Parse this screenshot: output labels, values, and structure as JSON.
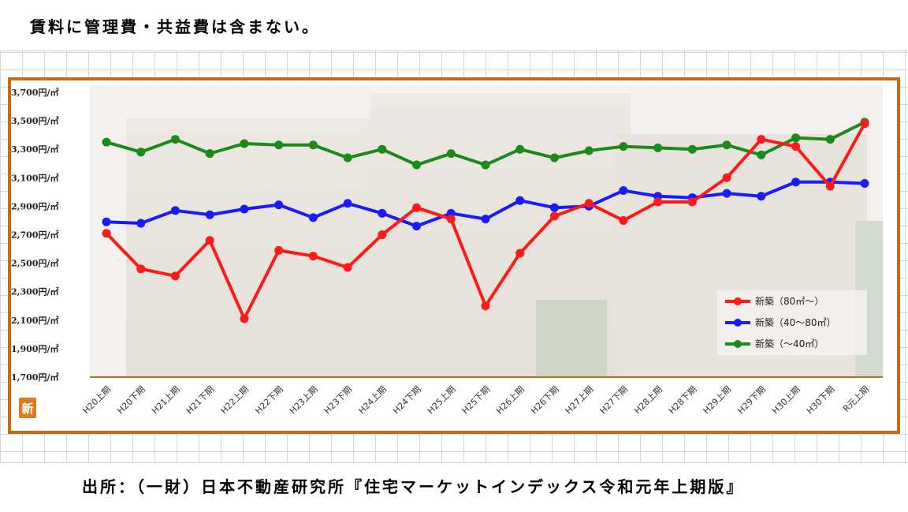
{
  "note": "賃料に管理費・共益費は含まない。",
  "source": "出所：（一財）日本不動産研究所『住宅マーケットインデックス令和元年上期版』",
  "badge": "新",
  "chart_data": {
    "type": "line",
    "title": "",
    "xlabel": "",
    "ylabel": "",
    "ylim": [
      1700,
      3700
    ],
    "yticks": [
      1700,
      1900,
      2100,
      2300,
      2500,
      2700,
      2900,
      3100,
      3300,
      3500,
      3700
    ],
    "ytick_suffix": "円/㎡",
    "categories": [
      "H20上期",
      "H20下期",
      "H21上期",
      "H21下期",
      "H22上期",
      "H22下期",
      "H23上期",
      "H23下期",
      "H24上期",
      "H24下期",
      "H25上期",
      "H25下期",
      "H26上期",
      "H26下期",
      "H27上期",
      "H27下期",
      "H28上期",
      "H28下期",
      "H29上期",
      "H29下期",
      "H30上期",
      "H30下期",
      "R元上期"
    ],
    "legend_position": "bottom-right",
    "series": [
      {
        "name": "新築（80㎡～）",
        "color": "#ff1a1a",
        "values": [
          2710,
          2460,
          2410,
          2660,
          2110,
          2590,
          2550,
          2470,
          2700,
          2890,
          2810,
          2200,
          2570,
          2830,
          2920,
          2800,
          2930,
          2930,
          3100,
          3370,
          3320,
          3040,
          3480
        ]
      },
      {
        "name": "新築（40～80㎡）",
        "color": "#1a1aff",
        "values": [
          2790,
          2780,
          2870,
          2840,
          2880,
          2910,
          2820,
          2920,
          2850,
          2760,
          2850,
          2810,
          2940,
          2890,
          2900,
          3010,
          2970,
          2960,
          2990,
          2970,
          3070,
          3070,
          3060
        ]
      },
      {
        "name": "新築（～40㎡）",
        "color": "#1a8a1a",
        "values": [
          3350,
          3280,
          3370,
          3270,
          3340,
          3330,
          3330,
          3240,
          3300,
          3190,
          3270,
          3190,
          3300,
          3240,
          3290,
          3320,
          3310,
          3300,
          3330,
          3260,
          3380,
          3370,
          3490
        ]
      }
    ]
  }
}
